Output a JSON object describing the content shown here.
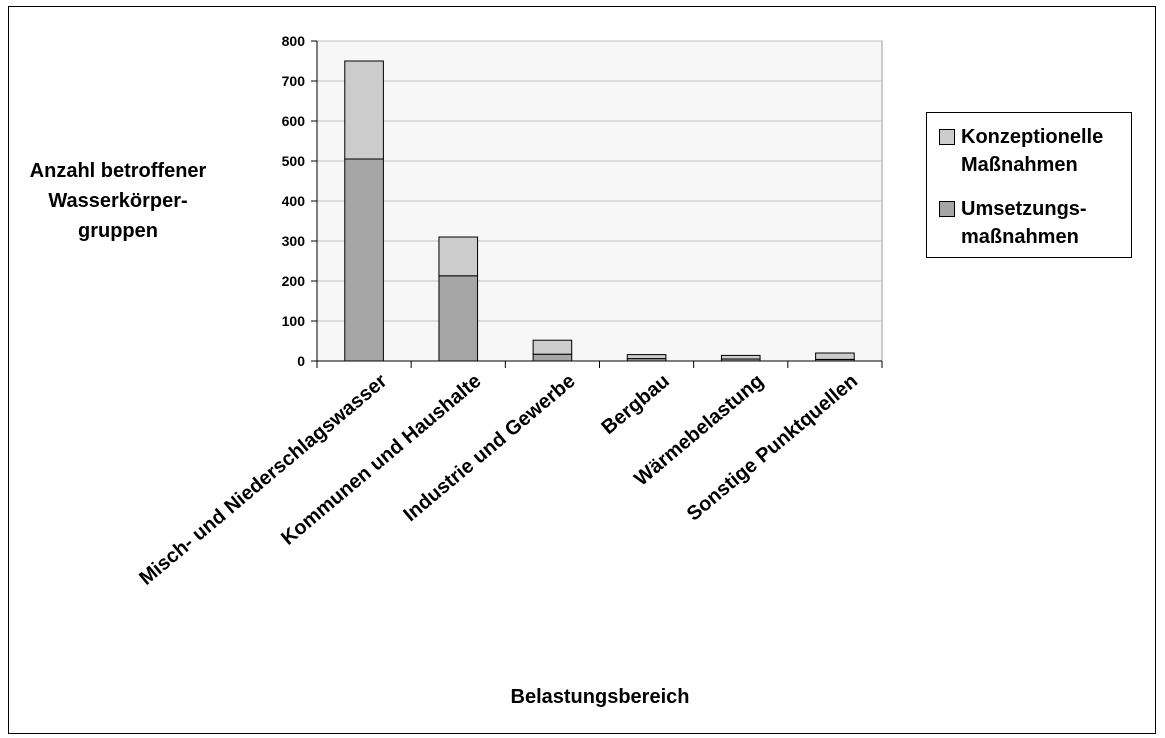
{
  "chart_data": {
    "type": "bar",
    "stacked": true,
    "categories": [
      "Misch- und Niederschlagswasser",
      "Kommunen und Haushalte",
      "Industrie und Gewerbe",
      "Bergbau",
      "Wärmebelastung",
      "Sonstige Punktquellen"
    ],
    "series": [
      {
        "name": "Umsetzungs-maßnahmen",
        "name_lines": [
          "Umsetzungs-",
          "maßnahmen"
        ],
        "color": "#a6a6a6",
        "values": [
          505,
          213,
          17,
          6,
          5,
          4
        ]
      },
      {
        "name": "Konzeptionelle Maßnahmen",
        "name_lines": [
          "Konzeptionelle",
          "Maßnahmen"
        ],
        "color": "#cccccc",
        "values": [
          245,
          97,
          35,
          10,
          9,
          16
        ]
      }
    ],
    "title": "",
    "ylabel_lines": [
      "Anzahl betroffener",
      "Wasserkörper-",
      "gruppen"
    ],
    "xlabel": "Belastungsbereich",
    "ylim": [
      0,
      800
    ],
    "yticks": [
      0,
      100,
      200,
      300,
      400,
      500,
      600,
      700,
      800
    ],
    "grid": true,
    "plot_background": "#f7f7f7",
    "legend_position": "right"
  }
}
